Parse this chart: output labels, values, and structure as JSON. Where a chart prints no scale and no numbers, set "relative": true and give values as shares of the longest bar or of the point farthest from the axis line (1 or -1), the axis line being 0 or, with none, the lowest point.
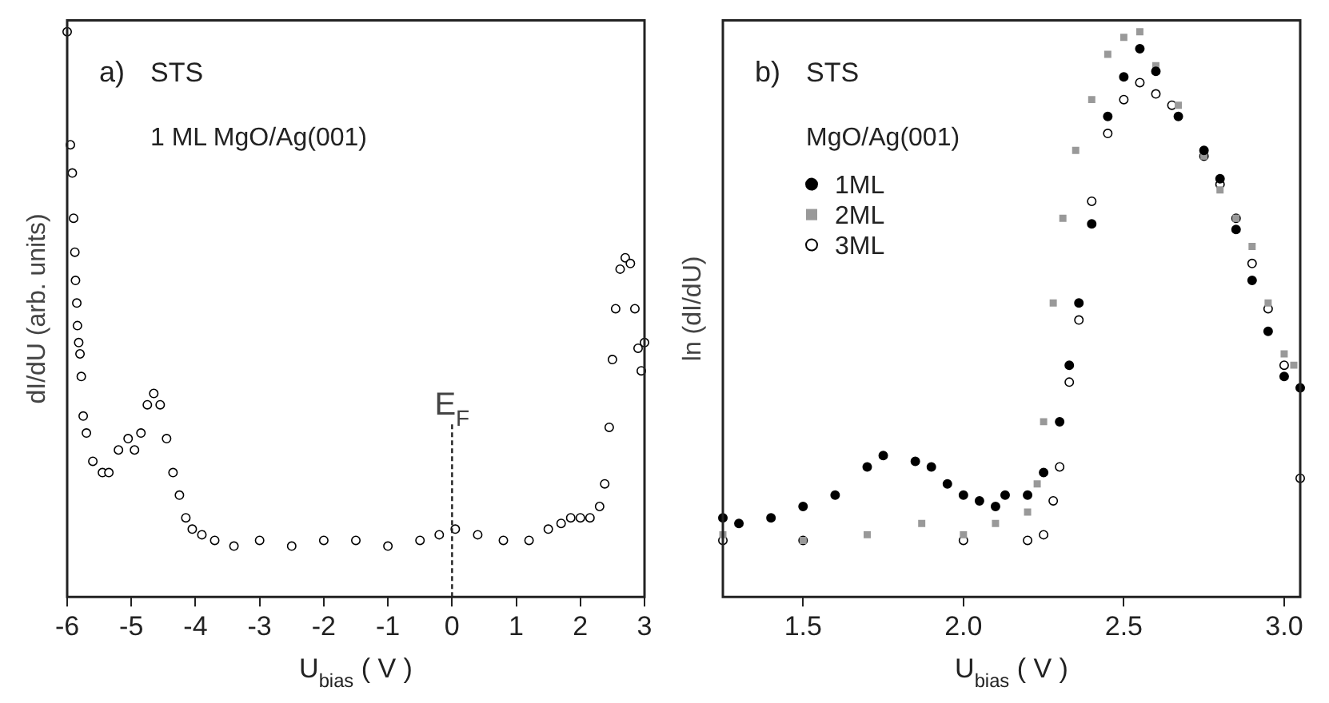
{
  "chart_data": [
    {
      "type": "scatter",
      "xlabel": "U$_{bias}$ ( V )",
      "ylabel": "dI/dU (arb. units)",
      "annotations": [
        "a)",
        "STS",
        "1 ML MgO/Ag(001)"
      ],
      "relative": true,
      "tick_labels": "x",
      "grid": false,
      "legend": false,
      "marker": "circle",
      "xlim": [
        -6,
        3
      ],
      "xticks": [
        -6,
        -5,
        -4,
        -3,
        -2,
        -1,
        0,
        1,
        2,
        3
      ],
      "ref_lines": [
        {
          "axis": "x",
          "value": 0,
          "label": "E$_{F}$",
          "line_style": "dashed"
        }
      ],
      "series": [
        {
          "color": "#ffffff",
          "x": [
            -6,
            -5.95,
            -5.92,
            -5.9,
            -5.88,
            -5.87,
            -5.85,
            -5.84,
            -5.82,
            -5.8,
            -5.78,
            -5.75,
            -5.7,
            -5.6,
            -5.45,
            -5.35,
            -5.2,
            -5.05,
            -4.95,
            -4.85,
            -4.75,
            -4.65,
            -4.55,
            -4.45,
            -4.35,
            -4.25,
            -4.15,
            -4.05,
            -3.9,
            -3.7,
            -3.4,
            -3.0,
            -2.5,
            -2.0,
            -1.5,
            -1.0,
            -0.5,
            -0.2,
            0.05,
            0.4,
            0.8,
            1.2,
            1.5,
            1.7,
            1.85,
            2.0,
            2.15,
            2.3,
            2.38,
            2.45,
            2.5,
            2.55,
            2.62,
            2.7,
            2.78,
            2.85,
            2.9,
            2.95,
            3.0
          ],
          "values": [
            1.0,
            0.8,
            0.75,
            0.67,
            0.61,
            0.56,
            0.52,
            0.48,
            0.45,
            0.43,
            0.39,
            0.32,
            0.29,
            0.24,
            0.22,
            0.22,
            0.26,
            0.28,
            0.26,
            0.29,
            0.34,
            0.36,
            0.34,
            0.28,
            0.22,
            0.18,
            0.14,
            0.12,
            0.11,
            0.1,
            0.09,
            0.1,
            0.09,
            0.1,
            0.1,
            0.09,
            0.1,
            0.11,
            0.12,
            0.11,
            0.1,
            0.1,
            0.12,
            0.13,
            0.14,
            0.14,
            0.14,
            0.16,
            0.2,
            0.3,
            0.42,
            0.51,
            0.58,
            0.6,
            0.59,
            0.51,
            0.44,
            0.4,
            0.45
          ]
        }
      ]
    },
    {
      "type": "scatter",
      "xlabel": "U$_{bias}$ ( V )",
      "ylabel": "ln (dI/dU)",
      "annotations": [
        "b)",
        "STS",
        "MgO/Ag(001)"
      ],
      "relative": true,
      "tick_labels": "x",
      "grid": false,
      "legend": "top left",
      "xlim": [
        1.25,
        3.05
      ],
      "xticks": [
        1.5,
        {
          "value": 2,
          "label": "2.0"
        },
        2.5,
        {
          "value": 3,
          "label": "3.0"
        }
      ],
      "series": [
        {
          "name": "1ML",
          "color": "#000000",
          "marker": "circle",
          "x": [
            1.25,
            1.3,
            1.4,
            1.5,
            1.6,
            1.7,
            1.75,
            1.85,
            1.9,
            1.95,
            2.0,
            2.05,
            2.1,
            2.13,
            2.2,
            2.25,
            2.3,
            2.33,
            2.36,
            2.4,
            2.45,
            2.5,
            2.55,
            2.6,
            2.67,
            2.75,
            2.8,
            2.85,
            2.9,
            2.95,
            3.0,
            3.05
          ],
          "values": [
            0.14,
            0.13,
            0.14,
            0.16,
            0.18,
            0.23,
            0.25,
            0.24,
            0.23,
            0.2,
            0.18,
            0.17,
            0.16,
            0.18,
            0.18,
            0.22,
            0.31,
            0.41,
            0.52,
            0.66,
            0.85,
            0.92,
            0.97,
            0.93,
            0.85,
            0.79,
            0.74,
            0.65,
            0.56,
            0.47,
            0.39,
            0.37
          ]
        },
        {
          "name": "2ML",
          "color": "#999999",
          "marker": "square",
          "x": [
            1.25,
            1.5,
            1.7,
            1.87,
            2.0,
            2.1,
            2.2,
            2.23,
            2.25,
            2.28,
            2.31,
            2.35,
            2.4,
            2.45,
            2.5,
            2.55,
            2.6,
            2.67,
            2.75,
            2.8,
            2.85,
            2.9,
            2.95,
            3.0,
            3.03
          ],
          "values": [
            0.11,
            0.1,
            0.11,
            0.13,
            0.11,
            0.13,
            0.15,
            0.2,
            0.31,
            0.52,
            0.67,
            0.79,
            0.88,
            0.96,
            0.99,
            1.0,
            0.94,
            0.87,
            0.78,
            0.72,
            0.67,
            0.62,
            0.52,
            0.43,
            0.41
          ]
        },
        {
          "name": "3ML",
          "color": "#ffffff",
          "marker": "circle",
          "x": [
            1.25,
            1.5,
            2.0,
            2.2,
            2.25,
            2.28,
            2.3,
            2.33,
            2.36,
            2.4,
            2.45,
            2.5,
            2.55,
            2.6,
            2.65,
            2.75,
            2.8,
            2.85,
            2.9,
            2.95,
            3.0,
            3.05
          ],
          "values": [
            0.1,
            0.1,
            0.1,
            0.1,
            0.11,
            0.17,
            0.23,
            0.38,
            0.49,
            0.7,
            0.82,
            0.88,
            0.91,
            0.89,
            0.87,
            0.78,
            0.73,
            0.67,
            0.59,
            0.51,
            0.41,
            0.21
          ]
        }
      ]
    }
  ]
}
